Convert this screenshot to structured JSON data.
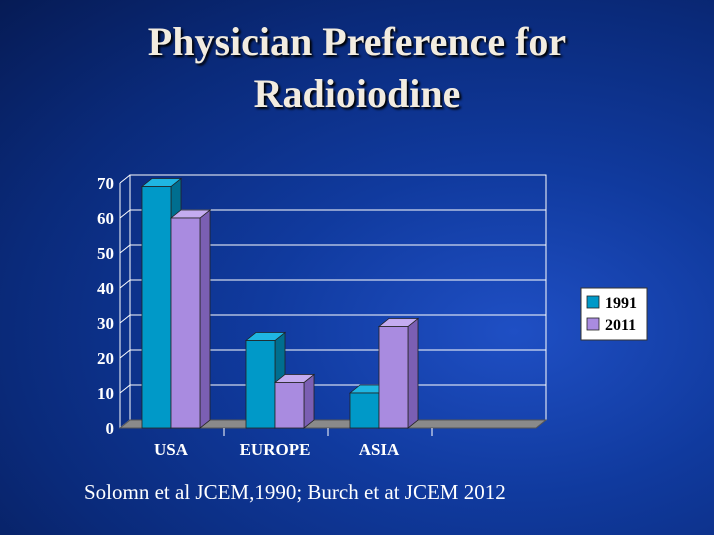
{
  "slide": {
    "title_line1": "Physician Preference for",
    "title_line2": "Radioiodine",
    "citation": "Solomn et al JCEM,1990; Burch et at JCEM 2012"
  },
  "chart_data": {
    "type": "bar",
    "title": "",
    "xlabel": "",
    "ylabel": "",
    "categories": [
      "USA",
      "EUROPE",
      "ASIA",
      ""
    ],
    "series": [
      {
        "name": "1991",
        "values": [
          69,
          25,
          10,
          null
        ],
        "color": "#0099c8"
      },
      {
        "name": "2011",
        "values": [
          60,
          13,
          29,
          null
        ],
        "color": "#a98be0"
      }
    ],
    "yticks": [
      0,
      10,
      20,
      30,
      40,
      50,
      60,
      70
    ],
    "ylim": [
      0,
      70
    ],
    "grid": true,
    "legend": "right",
    "style": "3d"
  }
}
